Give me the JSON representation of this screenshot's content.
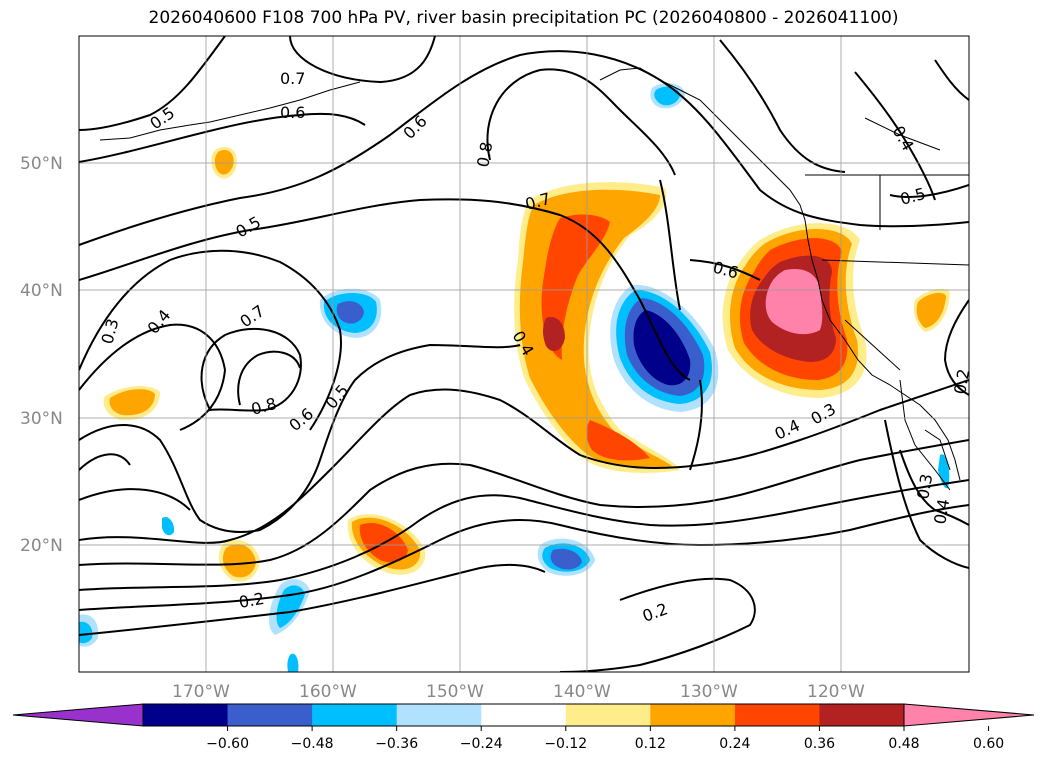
{
  "title": "2026040600 F108 700 hPa PV, river basin precipitation PC (2026040800 - 2026041100)",
  "map": {
    "lat_labels": [
      "50°N",
      "40°N",
      "30°N",
      "20°N"
    ],
    "lon_labels": [
      "170°W",
      "160°W",
      "150°W",
      "140°W",
      "130°W",
      "120°W"
    ],
    "contour_labels": [
      "0.7",
      "0.5",
      "0.6",
      "0.6",
      "0.8",
      "0.7",
      "0.5",
      "0.4",
      "0.3",
      "0.7",
      "0.8",
      "0.6",
      "0.5",
      "0.4",
      "0.6",
      "0.4",
      "0.3",
      "0.4",
      "0.5",
      "0.2",
      "0.3",
      "0.4",
      "0.2",
      "0.2"
    ]
  },
  "colorbar": {
    "colors": [
      "#9932cc",
      "#00008b",
      "#3a5fcd",
      "#00bfff",
      "#b0e2ff",
      "#ffffff",
      "#ffec8b",
      "#ffa500",
      "#ff4500",
      "#b22222",
      "#ff82ab"
    ],
    "tick_labels": [
      "−0.60",
      "−0.48",
      "−0.36",
      "−0.24",
      "−0.12",
      "0.12",
      "0.24",
      "0.36",
      "0.48",
      "0.60"
    ]
  }
}
